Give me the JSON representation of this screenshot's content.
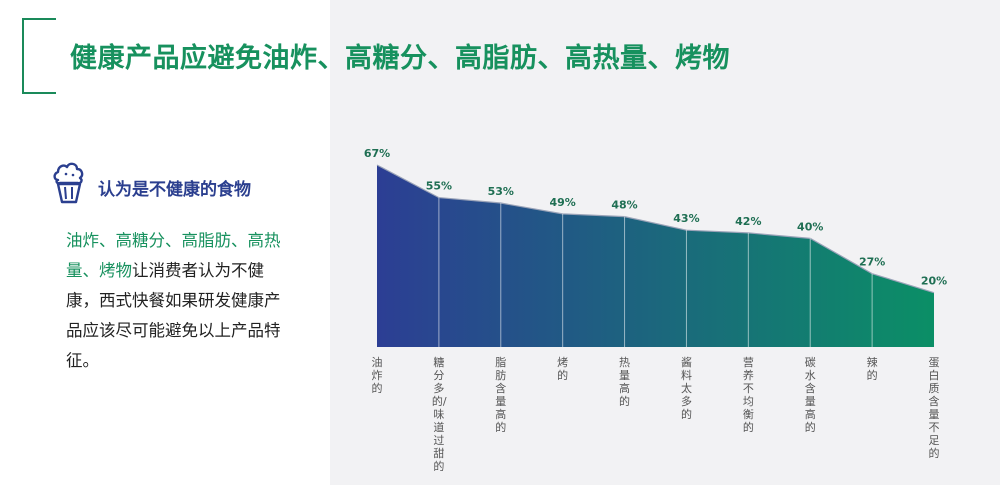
{
  "title": "健康产品应避免油炸、高糖分、高脂肪、高热量、烤物",
  "side": {
    "heading": "认为是不健康的食物",
    "desc_highlight": "油炸、高糖分、高脂肪、高热量、烤物",
    "desc_rest": "让消费者认为不健康，西式快餐如果研发健康产品应该尽可能避免以上产品特征。"
  },
  "colors": {
    "accent_green": "#17915e",
    "navy": "#2b3f8f",
    "gradient_start": "#2c3e94",
    "gradient_end": "#0b8f66"
  },
  "chart_data": {
    "type": "area",
    "categories": [
      "油炸的",
      "糖分多的/味道过甜的",
      "脂肪含量高的",
      "烤的",
      "热量高的",
      "酱料太多的",
      "营养不均衡的",
      "碳水含量高的",
      "辣的",
      "蛋白质含量不足的"
    ],
    "values": [
      67,
      55,
      53,
      49,
      48,
      43,
      42,
      40,
      27,
      20
    ],
    "value_labels": [
      "67%",
      "55%",
      "53%",
      "49%",
      "48%",
      "43%",
      "42%",
      "40%",
      "27%",
      "20%"
    ],
    "unit": "%",
    "ylim": [
      0,
      67
    ],
    "grid": false,
    "title": "",
    "xlabel": "",
    "ylabel": ""
  }
}
